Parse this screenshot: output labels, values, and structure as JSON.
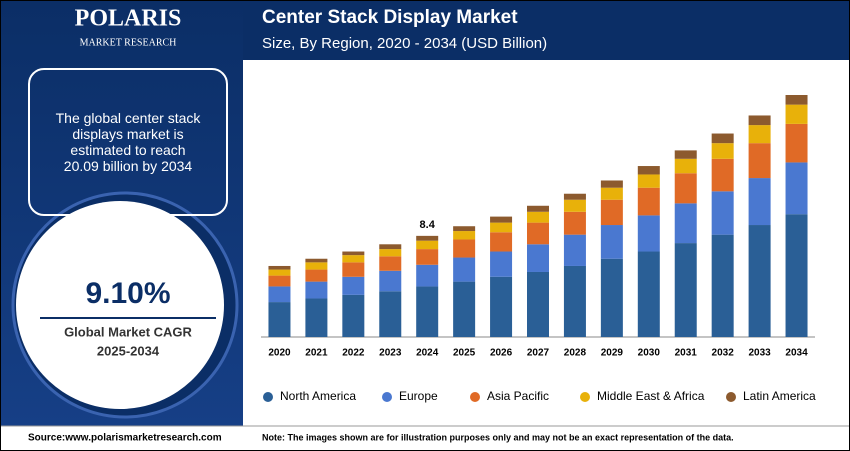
{
  "logo": {
    "name": "POLARIS",
    "tagline": "MARKET RESEARCH"
  },
  "left_panel": {
    "statement": "The global center stack displays market is estimated to reach 20.09 billion by 2034",
    "cagr": "9.10%",
    "cagr_label": "Global Market CAGR",
    "cagr_period": "2025-2034"
  },
  "footer": {
    "source": "Source:www.polarismarketresearch.com",
    "note": "Note: The images shown are for illustration purposes only and may not be an exact representation of the data."
  },
  "chart_data": {
    "type": "stacked_bar",
    "title": "Center Stack Display Market",
    "subtitle": "Size, By Region, 2020 - 2034 (USD Billion)",
    "categories": [
      "2020",
      "2021",
      "2022",
      "2023",
      "2024",
      "2025",
      "2026",
      "2027",
      "2028",
      "2029",
      "2030",
      "2031",
      "2032",
      "2033",
      "2034"
    ],
    "series": [
      {
        "name": "North America",
        "color": "#2a5f96",
        "values": [
          2.9,
          3.2,
          3.5,
          3.8,
          4.2,
          4.6,
          5.0,
          5.4,
          5.9,
          6.5,
          7.1,
          7.8,
          8.5,
          9.3,
          10.2
        ]
      },
      {
        "name": "Europe",
        "color": "#4a78d0",
        "values": [
          1.3,
          1.4,
          1.5,
          1.7,
          1.8,
          2.0,
          2.1,
          2.3,
          2.6,
          2.8,
          3.0,
          3.3,
          3.6,
          3.9,
          4.3
        ]
      },
      {
        "name": "Asia Pacific",
        "color": "#e06a26",
        "values": [
          0.9,
          1.0,
          1.2,
          1.2,
          1.3,
          1.5,
          1.6,
          1.8,
          1.9,
          2.1,
          2.3,
          2.5,
          2.7,
          2.9,
          3.2
        ]
      },
      {
        "name": "Middle East & Africa",
        "color": "#e8b10a",
        "values": [
          0.5,
          0.6,
          0.6,
          0.6,
          0.7,
          0.7,
          0.8,
          0.9,
          1.0,
          1.0,
          1.1,
          1.2,
          1.3,
          1.5,
          1.6
        ]
      },
      {
        "name": "Latin America",
        "color": "#8c5a2e",
        "values": [
          0.3,
          0.3,
          0.3,
          0.4,
          0.4,
          0.4,
          0.5,
          0.5,
          0.5,
          0.6,
          0.7,
          0.7,
          0.8,
          0.8,
          0.8
        ]
      }
    ],
    "annotations": [
      {
        "text": "8.4",
        "x": "2024"
      }
    ],
    "legend": "bottom"
  }
}
